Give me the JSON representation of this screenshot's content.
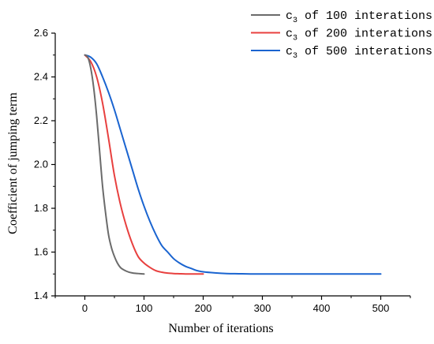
{
  "chart_data": {
    "type": "line",
    "title": "",
    "xlabel": "Number of iterations",
    "ylabel": "Coefficient of jumping term",
    "xlim": [
      -50,
      550
    ],
    "ylim": [
      1.4,
      2.6
    ],
    "xticks": [
      0,
      100,
      200,
      300,
      400,
      500
    ],
    "yticks": [
      1.4,
      1.6,
      1.8,
      2.0,
      2.2,
      2.4,
      2.6
    ],
    "xtick_labels": [
      "0",
      "100",
      "200",
      "300",
      "400",
      "500"
    ],
    "ytick_labels": [
      "1.4",
      "1.6",
      "1.8",
      "2.0",
      "2.2",
      "2.4",
      "2.6"
    ],
    "grid": false,
    "legend_position": "top-right",
    "series": [
      {
        "name": "c3 of 100 interations",
        "legend_prefix": "c",
        "legend_subscript": "3",
        "legend_suffix": " of 100 interations",
        "color": "#6b6b6b",
        "x": [
          0,
          5,
          10,
          15,
          20,
          25,
          30,
          35,
          40,
          45,
          50,
          55,
          60,
          65,
          70,
          75,
          80,
          85,
          90,
          95,
          100
        ],
        "y": [
          2.5,
          2.49,
          2.44,
          2.35,
          2.22,
          2.06,
          1.9,
          1.78,
          1.68,
          1.62,
          1.58,
          1.55,
          1.53,
          1.52,
          1.513,
          1.508,
          1.505,
          1.503,
          1.502,
          1.501,
          1.5
        ]
      },
      {
        "name": "c3 of 200 interations",
        "legend_prefix": "c",
        "legend_subscript": "3",
        "legend_suffix": " of 200 interations",
        "color": "#e8403f",
        "x": [
          0,
          10,
          20,
          30,
          40,
          50,
          60,
          70,
          80,
          90,
          100,
          110,
          120,
          130,
          140,
          150,
          160,
          170,
          180,
          190,
          200
        ],
        "y": [
          2.5,
          2.47,
          2.4,
          2.28,
          2.12,
          1.95,
          1.82,
          1.72,
          1.64,
          1.58,
          1.55,
          1.53,
          1.515,
          1.508,
          1.504,
          1.502,
          1.501,
          1.5,
          1.5,
          1.5,
          1.5
        ]
      },
      {
        "name": "c3 of 500 interations",
        "legend_prefix": "c",
        "legend_subscript": "3",
        "legend_suffix": " of 500 interations",
        "color": "#1a64d0",
        "x": [
          0,
          10,
          20,
          30,
          40,
          50,
          60,
          70,
          80,
          90,
          100,
          110,
          120,
          130,
          140,
          150,
          160,
          170,
          180,
          190,
          200,
          220,
          240,
          260,
          280,
          300,
          350,
          400,
          450,
          500
        ],
        "y": [
          2.5,
          2.49,
          2.46,
          2.4,
          2.33,
          2.25,
          2.16,
          2.07,
          1.98,
          1.89,
          1.81,
          1.74,
          1.68,
          1.63,
          1.6,
          1.57,
          1.55,
          1.535,
          1.525,
          1.515,
          1.51,
          1.505,
          1.502,
          1.501,
          1.5,
          1.5,
          1.5,
          1.5,
          1.5,
          1.5
        ]
      }
    ]
  }
}
